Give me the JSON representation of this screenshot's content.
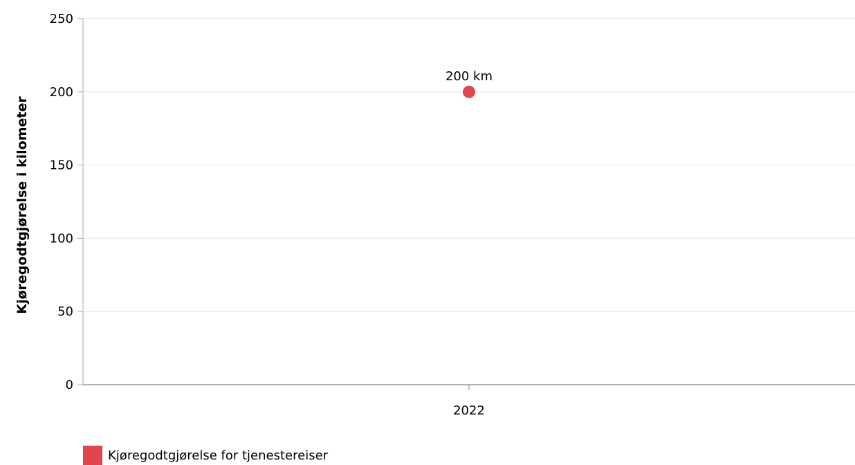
{
  "chart_data": {
    "type": "scatter",
    "title": "",
    "xlabel": "",
    "ylabel": "Kjøregodtgjørelse i kilometer",
    "categories": [
      "2022"
    ],
    "series": [
      {
        "name": "Kjøregodtgjørelse for tjenestereiser",
        "values": [
          200
        ],
        "labels": [
          "200 km"
        ],
        "color": "#e0474c"
      }
    ],
    "ylim": [
      0,
      250
    ],
    "yticks": [
      0,
      50,
      100,
      150,
      200,
      250
    ],
    "grid": true,
    "legend_position": "bottom-left"
  }
}
